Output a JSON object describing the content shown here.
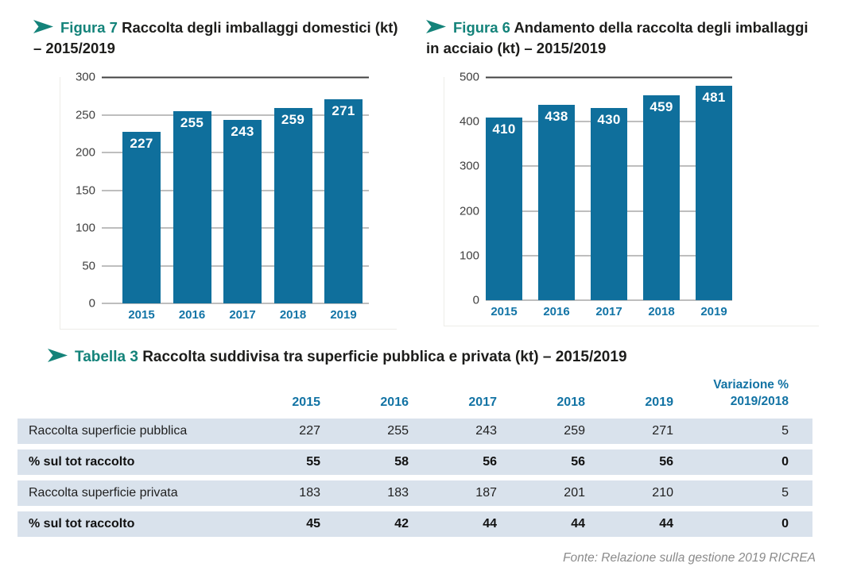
{
  "figures": [
    {
      "prefix": "Figura 7",
      "title": "Raccolta degli imballaggi domestici (kt) – 2015/2019"
    },
    {
      "prefix": "Figura 6",
      "title": "Andamento della raccolta degli imballaggi in acciaio (kt) – 2015/2019"
    }
  ],
  "chart_data": [
    {
      "type": "bar",
      "title": "Figura 7 Raccolta degli imballaggi domestici (kt) – 2015/2019",
      "categories": [
        "2015",
        "2016",
        "2017",
        "2018",
        "2019"
      ],
      "values": [
        227,
        255,
        243,
        259,
        271
      ],
      "xlabel": "",
      "ylabel": "",
      "ylim": [
        0,
        300
      ],
      "yticks": [
        0,
        50,
        100,
        150,
        200,
        250,
        300
      ],
      "grid": true,
      "legend": "none",
      "bar_color": "#0f6f9c",
      "value_label_style": "white-bold-inside-top"
    },
    {
      "type": "bar",
      "title": "Figura 6 Andamento della raccolta degli imballaggi in acciaio (kt) – 2015/2019",
      "categories": [
        "2015",
        "2016",
        "2017",
        "2018",
        "2019"
      ],
      "values": [
        410,
        438,
        430,
        459,
        481
      ],
      "xlabel": "",
      "ylabel": "",
      "ylim": [
        0,
        500
      ],
      "yticks": [
        0,
        100,
        200,
        300,
        400,
        500
      ],
      "grid": true,
      "legend": "none",
      "bar_color": "#0f6f9c",
      "value_label_style": "white-bold-inside-top"
    }
  ],
  "table": {
    "prefix": "Tabella 3",
    "title": "Raccolta suddivisa tra superficie pubblica e privata (kt) – 2015/2019",
    "years": [
      "2015",
      "2016",
      "2017",
      "2018",
      "2019"
    ],
    "last_col_line1": "Variazione %",
    "last_col_line2": "2019/2018",
    "rows": [
      {
        "label": "Raccolta superficie pubblica",
        "values": [
          227,
          255,
          243,
          259,
          271,
          5
        ],
        "bold": false
      },
      {
        "label": "% sul tot raccolto",
        "values": [
          55,
          58,
          56,
          56,
          56,
          0
        ],
        "bold": true
      },
      {
        "label": "Raccolta superficie privata",
        "values": [
          183,
          183,
          187,
          201,
          210,
          5
        ],
        "bold": false
      },
      {
        "label": "% sul tot raccolto",
        "values": [
          45,
          42,
          44,
          44,
          44,
          0
        ],
        "bold": true
      }
    ]
  },
  "source": "Fonte: Relazione sulla gestione 2019 RICREA",
  "colors": {
    "teal_accent": "#14837a",
    "bar_blue": "#0f6f9c",
    "axis_label_blue": "#1274a6",
    "table_header_blue": "#1273a4",
    "table_row_bg": "#d9e2ec",
    "source_gray": "#8a8a8a"
  }
}
